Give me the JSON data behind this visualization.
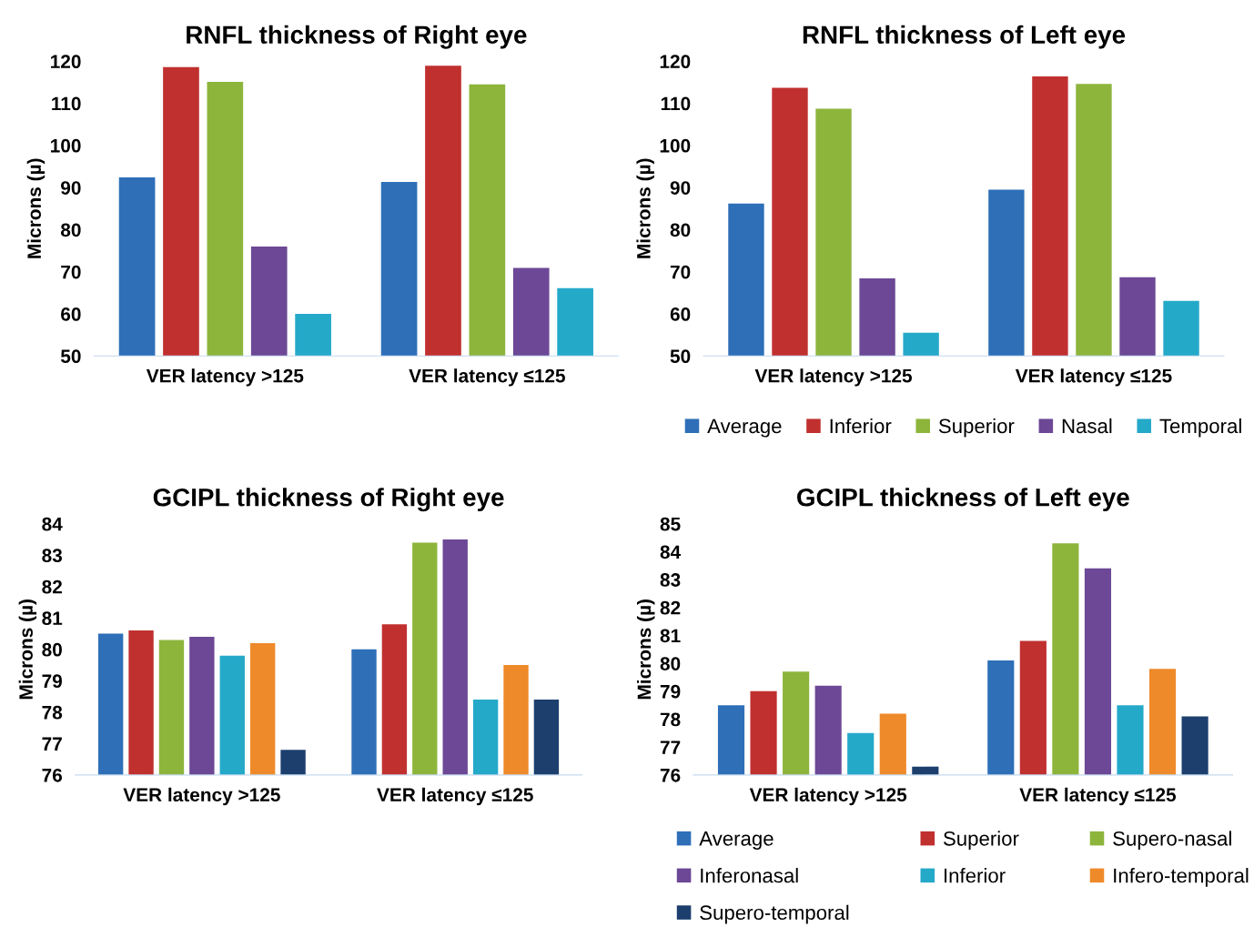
{
  "chart_data": [
    {
      "type": "bar",
      "title": "RNFL thickness of Right eye",
      "ylabel": "Microns (µ)",
      "categories": [
        "VER latency >125",
        "VER latency ≤125"
      ],
      "ylim": [
        50,
        120
      ],
      "yticks": [
        50,
        60,
        70,
        80,
        90,
        100,
        110,
        120
      ],
      "grid": false,
      "legend": false,
      "series": [
        {
          "color": "#2e6fb8",
          "values": [
            92.4,
            91.3
          ]
        },
        {
          "color": "#c0302f",
          "values": [
            118.6,
            118.9
          ]
        },
        {
          "color": "#8db53c",
          "values": [
            115.1,
            114.5
          ]
        },
        {
          "color": "#6c4896",
          "values": [
            76.0,
            70.9
          ]
        },
        {
          "color": "#25a9c9",
          "values": [
            60.0,
            66.1
          ]
        }
      ]
    },
    {
      "type": "bar",
      "title": "RNFL thickness of Left eye",
      "ylabel": "Microns (µ)",
      "categories": [
        "VER latency >125",
        "VER latency ≤125"
      ],
      "ylim": [
        50,
        120
      ],
      "yticks": [
        50,
        60,
        70,
        80,
        90,
        100,
        110,
        120
      ],
      "grid": false,
      "legend": "bottom",
      "series": [
        {
          "name": "Average",
          "color": "#2e6fb8",
          "values": [
            86.2,
            89.5
          ]
        },
        {
          "name": "Inferior",
          "color": "#c0302f",
          "values": [
            113.7,
            116.4
          ]
        },
        {
          "name": "Superior",
          "color": "#8db53c",
          "values": [
            108.7,
            114.6
          ]
        },
        {
          "name": "Nasal",
          "color": "#6c4896",
          "values": [
            68.4,
            68.7
          ]
        },
        {
          "name": "Temporal",
          "color": "#25a9c9",
          "values": [
            55.5,
            63.1
          ]
        }
      ]
    },
    {
      "type": "bar",
      "title": "GCIPL thickness of Right eye",
      "ylabel": "Microns (µ)",
      "categories": [
        "VER latency >125",
        "VER latency ≤125"
      ],
      "ylim": [
        76,
        84
      ],
      "yticks": [
        76,
        77,
        78,
        79,
        80,
        81,
        82,
        83,
        84
      ],
      "grid": false,
      "legend": false,
      "series": [
        {
          "color": "#2e6fb8",
          "values": [
            80.5,
            80.0
          ]
        },
        {
          "color": "#c0302f",
          "values": [
            80.6,
            80.8
          ]
        },
        {
          "color": "#8db53c",
          "values": [
            80.3,
            83.4
          ]
        },
        {
          "color": "#6c4896",
          "values": [
            80.4,
            83.5
          ]
        },
        {
          "color": "#25a9c9",
          "values": [
            79.8,
            78.4
          ]
        },
        {
          "color": "#ee8a2a",
          "values": [
            80.2,
            79.5
          ]
        },
        {
          "color": "#1c3f6e",
          "values": [
            76.8,
            78.4
          ]
        }
      ]
    },
    {
      "type": "bar",
      "title": "GCIPL thickness of Left eye",
      "ylabel": "Microns (µ)",
      "categories": [
        "VER latency >125",
        "VER latency ≤125"
      ],
      "ylim": [
        76,
        85
      ],
      "yticks": [
        76,
        77,
        78,
        79,
        80,
        81,
        82,
        83,
        84,
        85
      ],
      "grid": false,
      "legend": "bottom",
      "series": [
        {
          "name": "Average",
          "color": "#2e6fb8",
          "values": [
            78.5,
            80.1
          ]
        },
        {
          "name": "Superior",
          "color": "#c0302f",
          "values": [
            79.0,
            80.8
          ]
        },
        {
          "name": "Supero-nasal",
          "color": "#8db53c",
          "values": [
            79.7,
            84.3
          ]
        },
        {
          "name": "Inferonasal",
          "color": "#6c4896",
          "values": [
            79.2,
            83.4
          ]
        },
        {
          "name": "Inferior",
          "color": "#25a9c9",
          "values": [
            77.5,
            78.5
          ]
        },
        {
          "name": "Infero-temporal",
          "color": "#ee8a2a",
          "values": [
            78.2,
            79.8
          ]
        },
        {
          "name": "Supero-temporal",
          "color": "#1c3f6e",
          "values": [
            76.3,
            78.1
          ]
        }
      ]
    }
  ]
}
